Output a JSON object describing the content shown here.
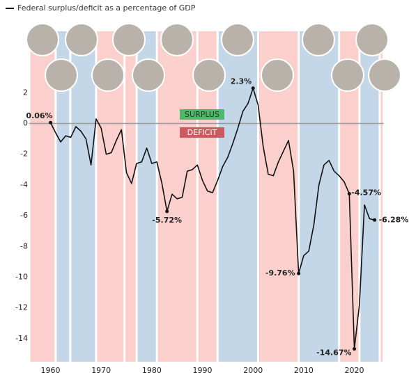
{
  "chart_data": {
    "type": "line",
    "x": [
      1960,
      1961,
      1962,
      1963,
      1964,
      1965,
      1966,
      1967,
      1968,
      1969,
      1970,
      1971,
      1972,
      1973,
      1974,
      1975,
      1976,
      1977,
      1978,
      1979,
      1980,
      1981,
      1982,
      1983,
      1984,
      1985,
      1986,
      1987,
      1988,
      1989,
      1990,
      1991,
      1992,
      1993,
      1994,
      1995,
      1996,
      1997,
      1998,
      1999,
      2000,
      2001,
      2002,
      2003,
      2004,
      2005,
      2006,
      2007,
      2008,
      2009,
      2010,
      2011,
      2012,
      2013,
      2014,
      2015,
      2016,
      2017,
      2018,
      2019,
      2020,
      2021,
      2022,
      2023,
      2024
    ],
    "series": [
      {
        "name": "Federal surplus/deficit as a percentage of GDP",
        "color": "#111111",
        "values": [
          0.06,
          -0.6,
          -1.2,
          -0.8,
          -0.9,
          -0.2,
          -0.5,
          -1.0,
          -2.7,
          0.3,
          -0.3,
          -2.0,
          -1.9,
          -1.1,
          -0.4,
          -3.2,
          -3.9,
          -2.6,
          -2.5,
          -1.6,
          -2.6,
          -2.5,
          -3.9,
          -5.72,
          -4.6,
          -4.9,
          -4.8,
          -3.1,
          -3.0,
          -2.7,
          -3.7,
          -4.4,
          -4.5,
          -3.7,
          -2.8,
          -2.2,
          -1.3,
          -0.3,
          0.8,
          1.3,
          2.3,
          1.2,
          -1.5,
          -3.3,
          -3.4,
          -2.5,
          -1.8,
          -1.1,
          -3.1,
          -9.76,
          -8.6,
          -8.3,
          -6.6,
          -4.0,
          -2.7,
          -2.4,
          -3.1,
          -3.4,
          -3.8,
          -4.57,
          -14.67,
          -11.8,
          -5.3,
          -6.2,
          -6.28
        ],
        "value_labels": [
          "0.06%",
          null,
          null,
          null,
          null,
          null,
          null,
          null,
          null,
          null,
          null,
          null,
          null,
          null,
          null,
          null,
          null,
          null,
          null,
          null,
          null,
          null,
          null,
          "-5.72%",
          null,
          null,
          null,
          null,
          null,
          null,
          null,
          null,
          null,
          null,
          null,
          null,
          null,
          null,
          null,
          null,
          "2.3%",
          null,
          null,
          null,
          null,
          null,
          null,
          null,
          null,
          "-9.76%",
          null,
          null,
          null,
          null,
          null,
          null,
          null,
          null,
          null,
          "-4.57%",
          "-14.67%",
          null,
          null,
          null,
          "-6.28%"
        ]
      }
    ],
    "xlim": [
      1955.8,
      2025.8
    ],
    "xticks": [
      1960,
      1970,
      1980,
      1990,
      2000,
      2010,
      2020
    ],
    "ylim": [
      -15.5,
      6
    ],
    "yticks": [
      -14,
      -12,
      -10,
      -8,
      -6,
      -4,
      -2,
      0,
      2
    ],
    "annotations": [
      {
        "text": "SURPLUS",
        "color": "#4fb86a"
      },
      {
        "text": "DEFICIT",
        "color": "#cd5a61"
      }
    ],
    "bands": [
      {
        "xlim": [
          1955.8,
          1961
        ],
        "color": "#fbd0cc"
      },
      {
        "xlim": [
          1961,
          1963.9
        ],
        "color": "#c3d7e8"
      },
      {
        "xlim": [
          1963.9,
          1969
        ],
        "color": "#c3d7e8"
      },
      {
        "xlim": [
          1969,
          1974.6
        ],
        "color": "#fbd0cc"
      },
      {
        "xlim": [
          1974.6,
          1977
        ],
        "color": "#fbd0cc"
      },
      {
        "xlim": [
          1977,
          1981
        ],
        "color": "#c3d7e8"
      },
      {
        "xlim": [
          1981,
          1989
        ],
        "color": "#fbd0cc"
      },
      {
        "xlim": [
          1989,
          1993
        ],
        "color": "#fbd0cc"
      },
      {
        "xlim": [
          1993,
          2001
        ],
        "color": "#c3d7e8"
      },
      {
        "xlim": [
          2001,
          2009
        ],
        "color": "#fbd0cc"
      },
      {
        "xlim": [
          2009,
          2017
        ],
        "color": "#c3d7e8"
      },
      {
        "xlim": [
          2017,
          2021
        ],
        "color": "#fbd0cc"
      },
      {
        "xlim": [
          2021,
          2025
        ],
        "color": "#c3d7e8"
      },
      {
        "xlim": [
          2025,
          2025.8
        ],
        "color": "#fbd0cc"
      }
    ]
  }
}
